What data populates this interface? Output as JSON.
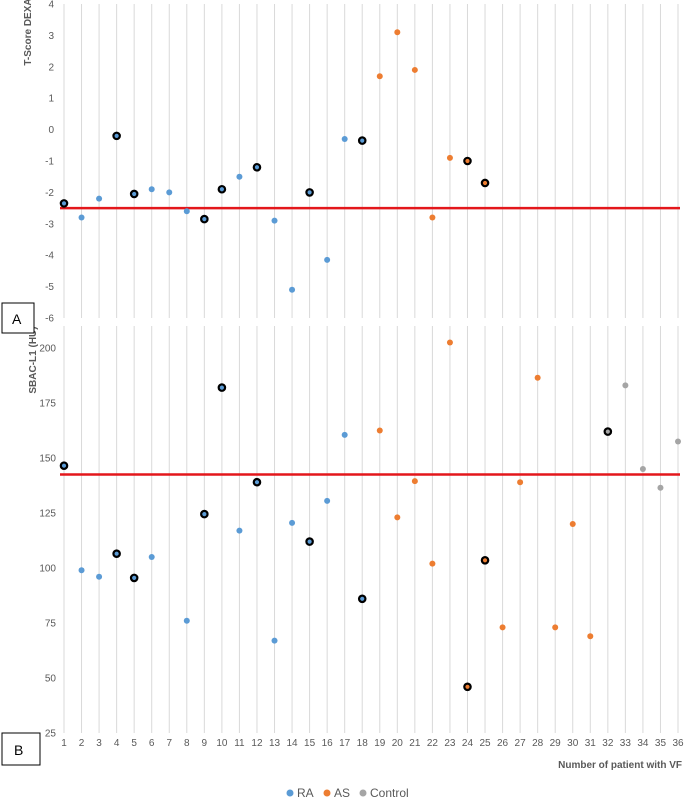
{
  "colors": {
    "RA": "#5b9bd5",
    "AS": "#ed7d31",
    "Control": "#a5a5a5",
    "threshold": "#e3171b",
    "outline": "#000000",
    "grid": "#d9d9d9"
  },
  "panel_labels": {
    "a": "A",
    "b": "B"
  },
  "legend": {
    "RA": "RA",
    "AS": "AS",
    "Control": "Control"
  },
  "chart_data": [
    {
      "type": "scatter",
      "panel": "A",
      "title": "",
      "xlabel": "",
      "ylabel": "T-Score DEXA",
      "ylim": [
        -6,
        4
      ],
      "yticks": [
        4,
        3,
        2,
        1,
        0,
        -1,
        -2,
        -3,
        -4,
        -5,
        -6
      ],
      "xlim": [
        1,
        36
      ],
      "grid": "vertical",
      "threshold": -2.5,
      "series": [
        {
          "name": "RA",
          "points": [
            {
              "x": 1,
              "y": -2.35,
              "outlined": true
            },
            {
              "x": 2,
              "y": -2.8
            },
            {
              "x": 3,
              "y": -2.2
            },
            {
              "x": 4,
              "y": -0.2,
              "outlined": true
            },
            {
              "x": 5,
              "y": -2.05,
              "outlined": true
            },
            {
              "x": 6,
              "y": -1.9
            },
            {
              "x": 7,
              "y": -2.0
            },
            {
              "x": 8,
              "y": -2.6
            },
            {
              "x": 9,
              "y": -2.85,
              "outlined": true
            },
            {
              "x": 10,
              "y": -1.9,
              "outlined": true
            },
            {
              "x": 11,
              "y": -1.5
            },
            {
              "x": 12,
              "y": -1.2,
              "outlined": true
            },
            {
              "x": 13,
              "y": -2.9
            },
            {
              "x": 14,
              "y": -5.1
            },
            {
              "x": 15,
              "y": -2.0,
              "outlined": true
            },
            {
              "x": 16,
              "y": -4.15
            },
            {
              "x": 17,
              "y": -0.3
            },
            {
              "x": 18,
              "y": -0.35,
              "outlined": true
            }
          ]
        },
        {
          "name": "AS",
          "points": [
            {
              "x": 19,
              "y": 1.7
            },
            {
              "x": 20,
              "y": 3.1
            },
            {
              "x": 21,
              "y": 1.9
            },
            {
              "x": 22,
              "y": -2.8
            },
            {
              "x": 23,
              "y": -0.9
            },
            {
              "x": 24,
              "y": -1.0,
              "outlined": true
            },
            {
              "x": 25,
              "y": -1.7,
              "outlined": true
            }
          ]
        }
      ]
    },
    {
      "type": "scatter",
      "panel": "B",
      "title": "",
      "xlabel": "Number of patient with VF",
      "ylabel": "SBAC-L1 (HU)",
      "ylim": [
        25,
        210
      ],
      "yticks": [
        200,
        175,
        150,
        125,
        100,
        75,
        50,
        25
      ],
      "xlim": [
        1,
        36
      ],
      "categories": [
        "1",
        "2",
        "3",
        "4",
        "5",
        "6",
        "7",
        "8",
        "9",
        "10",
        "11",
        "12",
        "13",
        "14",
        "15",
        "16",
        "17",
        "18",
        "19",
        "20",
        "21",
        "22",
        "23",
        "24",
        "25",
        "26",
        "27",
        "28",
        "29",
        "30",
        "31",
        "32",
        "33",
        "34",
        "35",
        "36"
      ],
      "grid": "vertical",
      "threshold": 142.5,
      "series": [
        {
          "name": "RA",
          "points": [
            {
              "x": 1,
              "y": 146.5,
              "outlined": true
            },
            {
              "x": 2,
              "y": 99
            },
            {
              "x": 3,
              "y": 96
            },
            {
              "x": 4,
              "y": 106.5,
              "outlined": true
            },
            {
              "x": 5,
              "y": 95.5,
              "outlined": true
            },
            {
              "x": 6,
              "y": 105
            },
            {
              "x": 8,
              "y": 76
            },
            {
              "x": 9,
              "y": 124.5,
              "outlined": true
            },
            {
              "x": 10,
              "y": 182,
              "outlined": true
            },
            {
              "x": 11,
              "y": 117
            },
            {
              "x": 12,
              "y": 139,
              "outlined": true
            },
            {
              "x": 13,
              "y": 67
            },
            {
              "x": 14,
              "y": 120.5
            },
            {
              "x": 15,
              "y": 112,
              "outlined": true
            },
            {
              "x": 16,
              "y": 130.5
            },
            {
              "x": 17,
              "y": 160.5
            },
            {
              "x": 18,
              "y": 86,
              "outlined": true
            }
          ]
        },
        {
          "name": "AS",
          "points": [
            {
              "x": 19,
              "y": 162.5
            },
            {
              "x": 20,
              "y": 123
            },
            {
              "x": 21,
              "y": 139.5
            },
            {
              "x": 22,
              "y": 102
            },
            {
              "x": 23,
              "y": 202.5
            },
            {
              "x": 24,
              "y": 46,
              "outlined": true
            },
            {
              "x": 25,
              "y": 103.5,
              "outlined": true
            },
            {
              "x": 26,
              "y": 73
            },
            {
              "x": 27,
              "y": 139
            },
            {
              "x": 28,
              "y": 186.5
            },
            {
              "x": 29,
              "y": 73
            },
            {
              "x": 30,
              "y": 120
            },
            {
              "x": 31,
              "y": 69
            }
          ]
        },
        {
          "name": "Control",
          "points": [
            {
              "x": 32,
              "y": 162,
              "outlined": true
            },
            {
              "x": 33,
              "y": 183
            },
            {
              "x": 34,
              "y": 145
            },
            {
              "x": 35,
              "y": 136.5
            },
            {
              "x": 36,
              "y": 157.5
            }
          ]
        }
      ]
    }
  ]
}
